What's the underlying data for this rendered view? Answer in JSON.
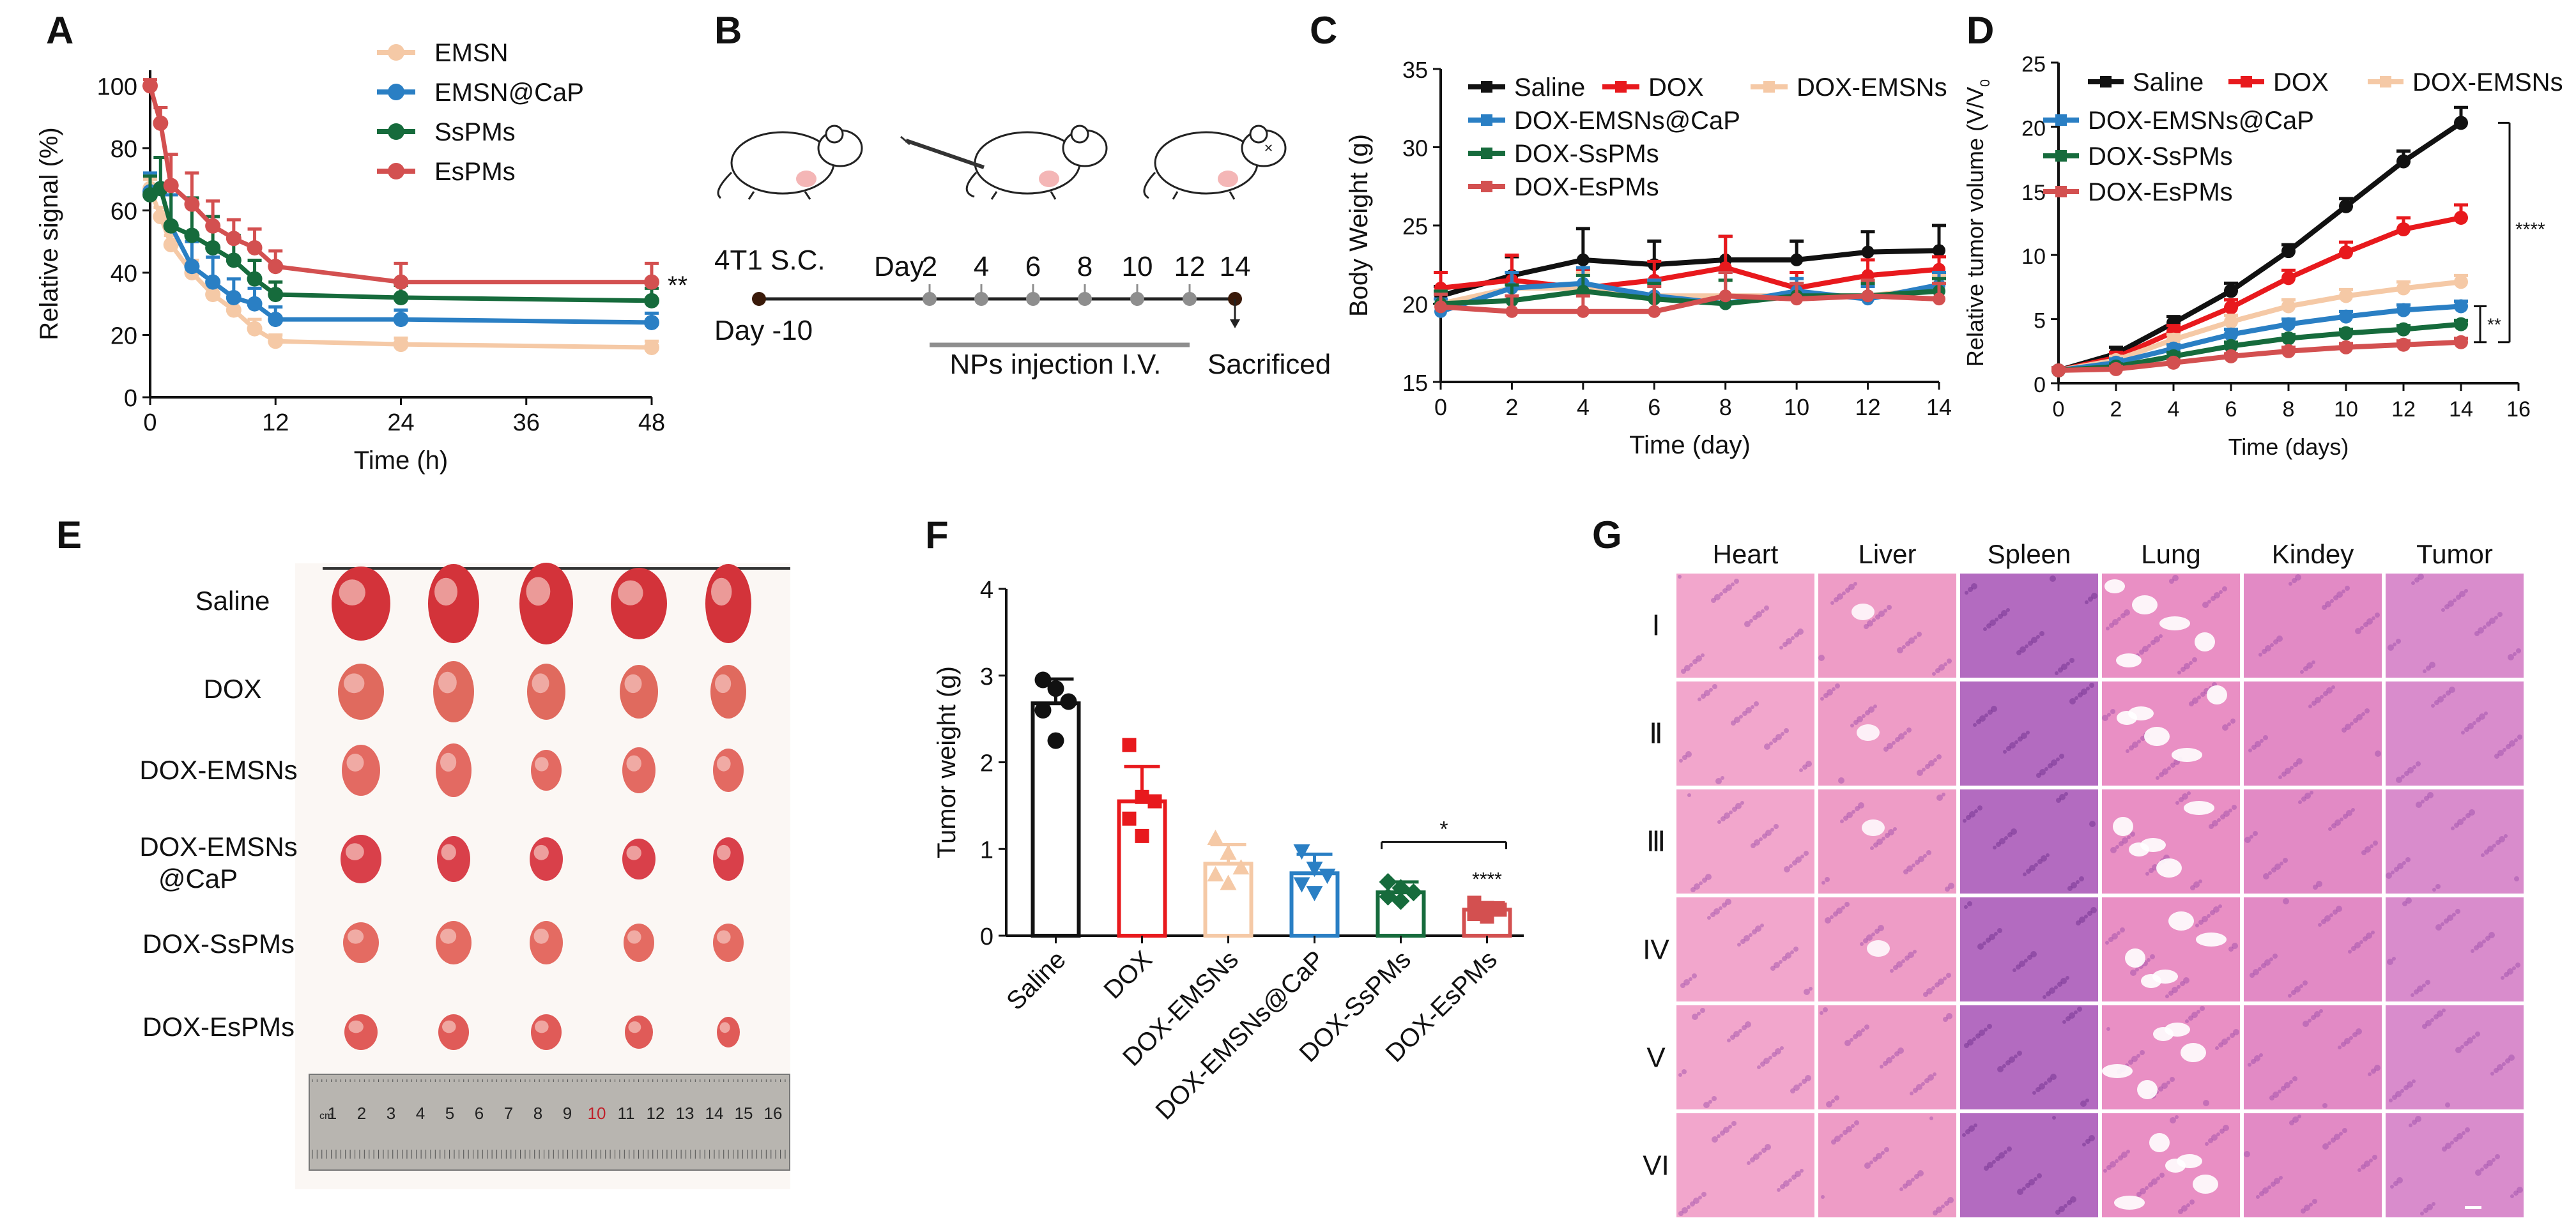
{
  "colors": {
    "saline": "#111111",
    "dox": "#e8191d",
    "emsn": "#f5c9a6",
    "capsule": "#2a7fc4",
    "sspm": "#166b3c",
    "espm": "#d35050",
    "arrow": "#8e8e8e",
    "tissue_pink": "#e85d8c",
    "tissue_purple": "#8a3fa6"
  },
  "panels": {
    "A": {
      "label": "A"
    },
    "B": {
      "label": "B"
    },
    "C": {
      "label": "C"
    },
    "D": {
      "label": "D"
    },
    "E": {
      "label": "E"
    },
    "F": {
      "label": "F"
    },
    "G": {
      "label": "G"
    }
  },
  "timeline": {
    "start_label": "4T1 S.C.",
    "day_start": "Day -10",
    "day_prefix": "Day",
    "days": [
      "2",
      "4",
      "6",
      "8",
      "10",
      "12"
    ],
    "end_day": "14",
    "injection_label": "NPs injection I.V.",
    "end_label": "Sacrificed"
  },
  "photo": {
    "groups": [
      "Saline",
      "DOX",
      "DOX-EMSNs",
      "DOX-EMSNs",
      "@CaP",
      "DOX-SsPMs",
      "DOX-EsPMs"
    ],
    "ruler_unit": "cm",
    "ruler_ticks": [
      "1",
      "2",
      "3",
      "4",
      "5",
      "6",
      "7",
      "8",
      "9",
      "10",
      "11",
      "12",
      "13",
      "14",
      "15",
      "16"
    ]
  },
  "histology": {
    "columns": [
      "Heart",
      "Liver",
      "Spleen",
      "Lung",
      "Kindey",
      "Tumor"
    ],
    "rows": [
      "Ⅰ",
      "Ⅱ",
      "Ⅲ",
      "IV",
      "V",
      "VI"
    ]
  },
  "chart_data": [
    {
      "id": "A",
      "type": "line",
      "title": "",
      "xlabel": "Time (h)",
      "ylabel": "Relative signal (%)",
      "xlim": [
        0,
        48
      ],
      "ylim": [
        0,
        105
      ],
      "xticks": [
        0,
        12,
        24,
        36,
        48
      ],
      "yticks": [
        0,
        20,
        40,
        60,
        80,
        100
      ],
      "x": [
        0,
        1,
        2,
        4,
        6,
        8,
        10,
        12,
        24,
        48
      ],
      "series": [
        {
          "name": "EMSN",
          "color": "#f5c9a6",
          "values": [
            67,
            58,
            49,
            40,
            33,
            28,
            22,
            18,
            17,
            16
          ],
          "err": [
            3,
            3,
            3,
            4,
            3,
            3,
            3,
            2,
            2,
            2
          ]
        },
        {
          "name": "EMSN@CaP",
          "color": "#2a7fc4",
          "values": [
            66,
            67,
            55,
            42,
            37,
            32,
            30,
            25,
            25,
            24
          ],
          "err": [
            6,
            10,
            10,
            8,
            8,
            6,
            5,
            4,
            3,
            3
          ]
        },
        {
          "name": "SsPMs",
          "color": "#166b3c",
          "values": [
            65,
            67,
            55,
            52,
            48,
            44,
            38,
            33,
            32,
            31
          ],
          "err": [
            6,
            10,
            12,
            12,
            10,
            8,
            6,
            4,
            4,
            4
          ]
        },
        {
          "name": "EsPMs",
          "color": "#d35050",
          "values": [
            100,
            88,
            68,
            62,
            55,
            51,
            48,
            42,
            37,
            37
          ],
          "err": [
            2,
            5,
            10,
            10,
            8,
            6,
            6,
            5,
            6,
            6
          ]
        }
      ],
      "annotations": [
        "**"
      ]
    },
    {
      "id": "C",
      "type": "line",
      "title": "",
      "xlabel": "Time (day)",
      "ylabel": "Body Weight (g)",
      "xlim": [
        0,
        14
      ],
      "ylim": [
        15,
        35
      ],
      "xticks": [
        0,
        2,
        4,
        6,
        8,
        10,
        12,
        14
      ],
      "yticks": [
        15,
        20,
        25,
        30,
        35
      ],
      "x": [
        0,
        2,
        4,
        6,
        8,
        10,
        12,
        14
      ],
      "series": [
        {
          "name": "Saline",
          "color": "#111111",
          "values": [
            20.5,
            21.8,
            22.8,
            22.5,
            22.8,
            22.8,
            23.3,
            23.4
          ],
          "err": [
            0.6,
            1.2,
            2.0,
            1.5,
            1.5,
            1.2,
            1.3,
            1.6
          ]
        },
        {
          "name": "DOX",
          "color": "#e8191d",
          "values": [
            21.0,
            21.5,
            21.0,
            21.5,
            22.3,
            21.0,
            21.8,
            22.2
          ],
          "err": [
            1.0,
            1.6,
            1.2,
            1.2,
            2.0,
            1.0,
            1.0,
            0.8
          ]
        },
        {
          "name": "DOX-EMSNs",
          "color": "#f5c9a6",
          "values": [
            20.0,
            21.0,
            21.0,
            20.5,
            20.5,
            20.5,
            20.5,
            21.0
          ],
          "err": [
            0.8,
            1.0,
            1.0,
            1.0,
            1.0,
            0.8,
            0.8,
            0.8
          ]
        },
        {
          "name": "DOX-EMSNs@CaP",
          "color": "#2a7fc4",
          "values": [
            19.5,
            21.0,
            21.3,
            20.5,
            20.0,
            20.8,
            20.3,
            21.2
          ],
          "err": [
            0.8,
            1.0,
            1.0,
            1.0,
            2.0,
            0.8,
            0.8,
            0.8
          ]
        },
        {
          "name": "DOX-SsPMs",
          "color": "#166b3c",
          "values": [
            20.0,
            20.2,
            20.8,
            20.3,
            20.0,
            20.5,
            20.5,
            20.8
          ],
          "err": [
            0.8,
            1.0,
            1.0,
            1.0,
            1.5,
            0.8,
            0.8,
            0.8
          ]
        },
        {
          "name": "DOX-EsPMs",
          "color": "#d35050",
          "values": [
            19.8,
            19.5,
            19.5,
            19.5,
            20.5,
            20.3,
            20.5,
            20.3
          ],
          "err": [
            0.8,
            1.0,
            1.0,
            1.6,
            1.5,
            1.0,
            1.0,
            1.0
          ]
        }
      ]
    },
    {
      "id": "D",
      "type": "line",
      "title": "",
      "xlabel": "Time (days)",
      "ylabel": "Relative tumor volume (V/V",
      "ylabel_subscript": "0",
      "xlim": [
        0,
        16
      ],
      "ylim": [
        0,
        25
      ],
      "xticks": [
        0,
        2,
        4,
        6,
        8,
        10,
        12,
        14,
        16
      ],
      "yticks": [
        0,
        5,
        10,
        15,
        20,
        25
      ],
      "x": [
        0,
        2,
        4,
        6,
        8,
        10,
        12,
        14
      ],
      "series": [
        {
          "name": "Saline",
          "color": "#111111",
          "values": [
            1.0,
            2.3,
            4.7,
            7.2,
            10.3,
            13.8,
            17.3,
            20.3
          ],
          "err": [
            0.2,
            0.5,
            0.5,
            0.6,
            0.5,
            0.6,
            0.8,
            1.2
          ]
        },
        {
          "name": "DOX",
          "color": "#e8191d",
          "values": [
            1.0,
            2.0,
            4.0,
            5.9,
            8.2,
            10.2,
            12.0,
            12.9
          ],
          "err": [
            0.2,
            0.4,
            0.5,
            0.6,
            0.6,
            0.8,
            0.9,
            1.0
          ]
        },
        {
          "name": "DOX-EMSNs",
          "color": "#f5c9a6",
          "values": [
            1.0,
            1.8,
            3.4,
            4.8,
            6.0,
            6.8,
            7.4,
            7.9
          ],
          "err": [
            0.2,
            0.3,
            0.4,
            0.5,
            0.5,
            0.5,
            0.5,
            0.5
          ]
        },
        {
          "name": "DOX-EMSNs@CaP",
          "color": "#2a7fc4",
          "values": [
            1.0,
            1.6,
            2.7,
            3.8,
            4.6,
            5.2,
            5.7,
            6.0
          ],
          "err": [
            0.2,
            0.3,
            0.3,
            0.4,
            0.4,
            0.4,
            0.4,
            0.4
          ]
        },
        {
          "name": "DOX-SsPMs",
          "color": "#166b3c",
          "values": [
            1.0,
            1.3,
            2.1,
            2.9,
            3.5,
            3.9,
            4.2,
            4.6
          ],
          "err": [
            0.2,
            0.2,
            0.3,
            0.3,
            0.3,
            0.3,
            0.3,
            0.3
          ]
        },
        {
          "name": "DOX-EsPMs",
          "color": "#d35050",
          "values": [
            1.0,
            1.1,
            1.6,
            2.1,
            2.5,
            2.8,
            3.0,
            3.2
          ],
          "err": [
            0.2,
            0.2,
            0.2,
            0.2,
            0.3,
            0.3,
            0.3,
            0.3
          ]
        }
      ],
      "annotations": [
        "****",
        "**"
      ]
    },
    {
      "id": "F",
      "type": "bar",
      "title": "",
      "xlabel": "",
      "ylabel": "Tumor weight (g)",
      "ylim": [
        0,
        4
      ],
      "yticks": [
        0,
        1,
        2,
        3,
        4
      ],
      "categories": [
        "Saline",
        "DOX",
        "DOX-EMSNs",
        "DOX-EMSNs@CaP",
        "DOX-SsPMs",
        "DOX-EsPMs"
      ],
      "values": [
        2.68,
        1.55,
        0.83,
        0.72,
        0.5,
        0.3
      ],
      "err": [
        0.28,
        0.4,
        0.22,
        0.22,
        0.12,
        0.08
      ],
      "colors": [
        "#111111",
        "#e8191d",
        "#f5c9a6",
        "#2a7fc4",
        "#166b3c",
        "#d35050"
      ],
      "points": [
        [
          2.95,
          2.85,
          2.7,
          2.6,
          2.25
        ],
        [
          2.2,
          1.6,
          1.55,
          1.35,
          1.15
        ],
        [
          1.12,
          0.95,
          0.78,
          0.7,
          0.6
        ],
        [
          0.98,
          0.78,
          0.7,
          0.6,
          0.5
        ],
        [
          0.62,
          0.55,
          0.5,
          0.45,
          0.4
        ],
        [
          0.38,
          0.32,
          0.3,
          0.25,
          0.22
        ]
      ],
      "annotations": [
        "*",
        "****"
      ]
    }
  ]
}
